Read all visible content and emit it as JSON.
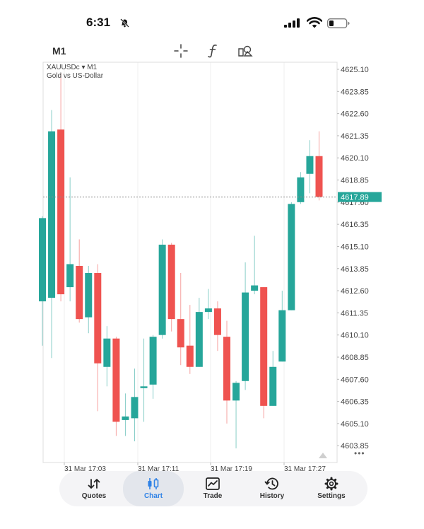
{
  "status_bar": {
    "time": "6:31"
  },
  "toolbar": {
    "timeframe": "M1",
    "tools": [
      "crosshair-icon",
      "function-icon",
      "objects-icon"
    ]
  },
  "chart": {
    "symbol": "XAUUSDc ▾ M1",
    "description": "Gold vs US-Dollar",
    "current_price": "4617.89",
    "more": "•••"
  },
  "colors": {
    "bull": "#26a69a",
    "bear": "#ef5350",
    "price_tag": "#26a69a"
  },
  "chart_data": {
    "type": "candlestick",
    "symbol": "XAUUSDc",
    "timeframe": "M1",
    "y_ticks": [
      "4625.10",
      "4623.85",
      "4622.60",
      "4621.35",
      "4620.10",
      "4618.85",
      "4617.60",
      "4616.35",
      "4615.10",
      "4613.85",
      "4612.60",
      "4611.35",
      "4610.10",
      "4608.85",
      "4607.60",
      "4606.35",
      "4605.10",
      "4603.85"
    ],
    "x_ticks": [
      "31 Mar 17:03",
      "31 Mar 17:11",
      "31 Mar 17:19",
      "31 Mar 17:27"
    ],
    "ylim": [
      4602.9,
      4625.5
    ],
    "current_price": 4617.89,
    "candles": [
      {
        "o": 4612.0,
        "h": 4616.8,
        "l": 4609.5,
        "c": 4616.7
      },
      {
        "o": 4612.2,
        "h": 4622.8,
        "l": 4608.8,
        "c": 4621.6
      },
      {
        "o": 4621.7,
        "h": 4624.9,
        "l": 4612.0,
        "c": 4612.4
      },
      {
        "o": 4612.8,
        "h": 4619.0,
        "l": 4612.0,
        "c": 4614.1
      },
      {
        "o": 4614.0,
        "h": 4615.5,
        "l": 4610.8,
        "c": 4611.0
      },
      {
        "o": 4611.1,
        "h": 4614.0,
        "l": 4610.2,
        "c": 4613.6
      },
      {
        "o": 4613.6,
        "h": 4614.1,
        "l": 4605.8,
        "c": 4608.5
      },
      {
        "o": 4608.3,
        "h": 4610.6,
        "l": 4607.2,
        "c": 4609.9
      },
      {
        "o": 4609.9,
        "h": 4610.0,
        "l": 4604.4,
        "c": 4605.2
      },
      {
        "o": 4605.3,
        "h": 4606.8,
        "l": 4604.4,
        "c": 4605.5
      },
      {
        "o": 4605.4,
        "h": 4608.2,
        "l": 4604.1,
        "c": 4606.6
      },
      {
        "o": 4607.1,
        "h": 4609.9,
        "l": 4605.2,
        "c": 4607.2
      },
      {
        "o": 4607.3,
        "h": 4610.1,
        "l": 4606.5,
        "c": 4610.0
      },
      {
        "o": 4610.1,
        "h": 4615.5,
        "l": 4609.9,
        "c": 4615.2
      },
      {
        "o": 4615.2,
        "h": 4615.3,
        "l": 4610.3,
        "c": 4611.0
      },
      {
        "o": 4611.0,
        "h": 4613.6,
        "l": 4608.4,
        "c": 4609.4
      },
      {
        "o": 4609.5,
        "h": 4611.8,
        "l": 4607.9,
        "c": 4608.3
      },
      {
        "o": 4608.3,
        "h": 4612.2,
        "l": 4608.3,
        "c": 4611.4
      },
      {
        "o": 4611.4,
        "h": 4612.7,
        "l": 4611.0,
        "c": 4611.6
      },
      {
        "o": 4611.6,
        "h": 4612.0,
        "l": 4609.2,
        "c": 4610.1
      },
      {
        "o": 4610.0,
        "h": 4610.9,
        "l": 4605.1,
        "c": 4606.4
      },
      {
        "o": 4606.4,
        "h": 4607.5,
        "l": 4603.7,
        "c": 4607.4
      },
      {
        "o": 4607.5,
        "h": 4614.2,
        "l": 4607.0,
        "c": 4612.5
      },
      {
        "o": 4612.6,
        "h": 4615.7,
        "l": 4612.4,
        "c": 4612.9
      },
      {
        "o": 4612.8,
        "h": 4612.8,
        "l": 4605.4,
        "c": 4606.1
      },
      {
        "o": 4606.1,
        "h": 4609.2,
        "l": 4606.1,
        "c": 4608.3
      },
      {
        "o": 4608.6,
        "h": 4612.6,
        "l": 4608.6,
        "c": 4611.5
      },
      {
        "o": 4611.5,
        "h": 4617.6,
        "l": 4611.5,
        "c": 4617.5
      },
      {
        "o": 4617.6,
        "h": 4619.3,
        "l": 4617.5,
        "c": 4619.0
      },
      {
        "o": 4619.2,
        "h": 4621.1,
        "l": 4618.1,
        "c": 4620.2
      },
      {
        "o": 4620.2,
        "h": 4621.6,
        "l": 4617.7,
        "c": 4617.9
      }
    ]
  },
  "bottom_nav": {
    "items": [
      {
        "label": "Quotes",
        "icon": "quotes-icon",
        "active": false
      },
      {
        "label": "Chart",
        "icon": "chart-icon",
        "active": true
      },
      {
        "label": "Trade",
        "icon": "trade-icon",
        "active": false
      },
      {
        "label": "History",
        "icon": "history-icon",
        "active": false
      },
      {
        "label": "Settings",
        "icon": "settings-icon",
        "active": false
      }
    ]
  }
}
